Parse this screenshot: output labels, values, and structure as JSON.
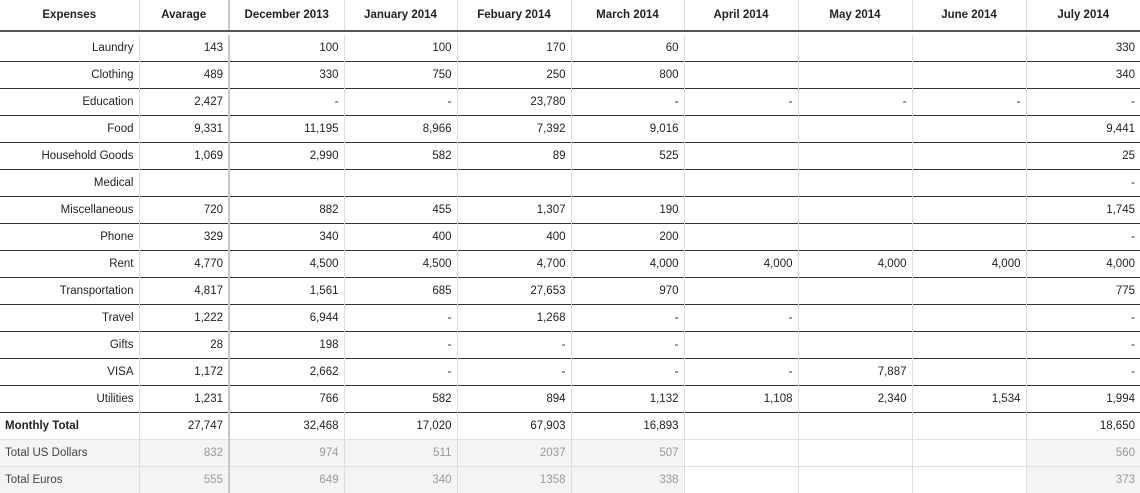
{
  "headers": [
    "Expenses",
    "Avarage",
    "December 2013",
    "January 2014",
    "Febuary 2014",
    "March 2014",
    "April 2014",
    "May 2014",
    "June 2014",
    "July 2014"
  ],
  "rows": [
    [
      "Laundry",
      "143",
      "100",
      "100",
      "170",
      "60",
      "",
      "",
      "",
      "330"
    ],
    [
      "Clothing",
      "489",
      "330",
      "750",
      "250",
      "800",
      "",
      "",
      "",
      "340"
    ],
    [
      "Education",
      "2,427",
      "-",
      "-",
      "23,780",
      "-",
      "-",
      "-",
      "-",
      "-"
    ],
    [
      "Food",
      "9,331",
      "11,195",
      "8,966",
      "7,392",
      "9,016",
      "",
      "",
      "",
      "9,441"
    ],
    [
      "Household Goods",
      "1,069",
      "2,990",
      "582",
      "89",
      "525",
      "",
      "",
      "",
      "25"
    ],
    [
      "Medical",
      "",
      "",
      "",
      "",
      "",
      "",
      "",
      "",
      "-"
    ],
    [
      "Miscellaneous",
      "720",
      "882",
      "455",
      "1,307",
      "190",
      "",
      "",
      "",
      "1,745"
    ],
    [
      "Phone",
      "329",
      "340",
      "400",
      "400",
      "200",
      "",
      "",
      "",
      "-"
    ],
    [
      "Rent",
      "4,770",
      "4,500",
      "4,500",
      "4,700",
      "4,000",
      "4,000",
      "4,000",
      "4,000",
      "4,000"
    ],
    [
      "Transportation",
      "4,817",
      "1,561",
      "685",
      "27,653",
      "970",
      "",
      "",
      "",
      "775"
    ],
    [
      "Travel",
      "1,222",
      "6,944",
      "-",
      "1,268",
      "-",
      "-",
      "",
      "",
      "-"
    ],
    [
      "Gifts",
      "28",
      "198",
      "-",
      "-",
      "-",
      "",
      "",
      "",
      "-"
    ],
    [
      "VISA",
      "1,172",
      "2,662",
      "-",
      "-",
      "-",
      "-",
      "7,887",
      "",
      "-"
    ],
    [
      "Utilities",
      "1,231",
      "766",
      "582",
      "894",
      "1,132",
      "1,108",
      "2,340",
      "1,534",
      "1,994"
    ]
  ],
  "monthly_total": [
    "Monthly Total",
    "27,747",
    "32,468",
    "17,020",
    "67,903",
    "16,893",
    "",
    "",
    "",
    "18,650"
  ],
  "total_usd": [
    "Total US Dollars",
    "832",
    "974",
    "511",
    "2037",
    "507",
    "",
    "",
    "",
    "560"
  ],
  "total_eur": [
    "Total Euros",
    "555",
    "649",
    "340",
    "1358",
    "338",
    "",
    "",
    "",
    "373"
  ]
}
